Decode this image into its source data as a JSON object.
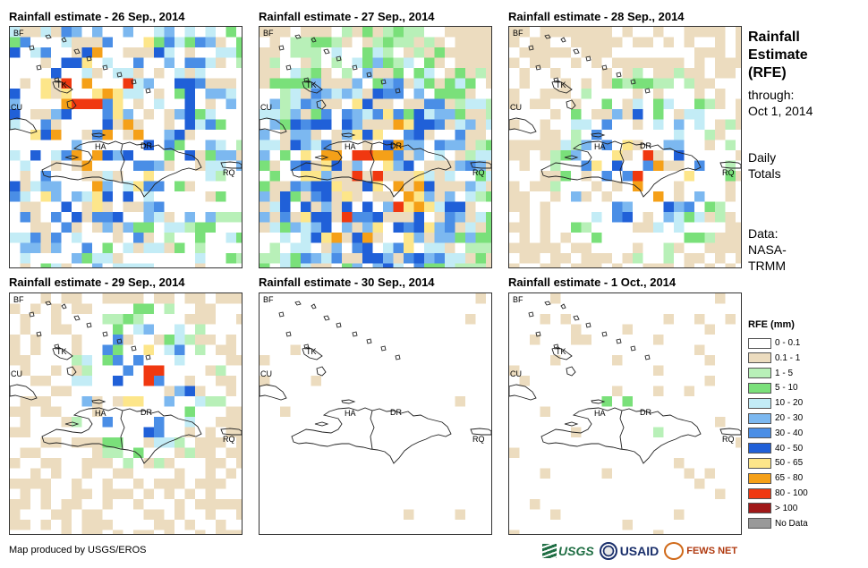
{
  "panels": [
    {
      "title": "Rainfall estimate - 26 Sep., 2014",
      "seed": 26,
      "density": 0.55,
      "intensity": 2.6,
      "focus": [
        0.3,
        0.35,
        0.75
      ]
    },
    {
      "title": "Rainfall estimate - 27 Sep., 2014",
      "seed": 27,
      "density": 0.85,
      "intensity": 2.9,
      "focus": [
        0.45,
        0.6,
        0.5
      ]
    },
    {
      "title": "Rainfall estimate - 28 Sep., 2014",
      "seed": 28,
      "density": 0.55,
      "intensity": 3.0,
      "focus": [
        0.55,
        0.55,
        0.3
      ]
    },
    {
      "title": "Rainfall estimate - 29 Sep., 2014",
      "seed": 29,
      "density": 0.5,
      "intensity": 3.1,
      "focus": [
        0.55,
        0.35,
        0.25
      ]
    },
    {
      "title": "Rainfall estimate - 30 Sep., 2014",
      "seed": 30,
      "density": 0.03,
      "intensity": 0.7,
      "focus": [
        0.4,
        0.5,
        0.2
      ]
    },
    {
      "title": "Rainfall estimate - 1 Oct., 2014",
      "seed": 31,
      "density": 0.08,
      "intensity": 1.2,
      "focus": [
        0.5,
        0.55,
        0.3
      ]
    }
  ],
  "places": {
    "bf": "BF",
    "tk": "TK",
    "cu": "CU",
    "ha": "HA",
    "dr": "DR",
    "rq": "RQ"
  },
  "side": {
    "title_line1": "Rainfall",
    "title_line2": "Estimate",
    "title_line3": "(RFE)",
    "through": "through:",
    "through_date": "Oct 1, 2014",
    "totals_line1": "Daily",
    "totals_line2": "Totals",
    "data_line1": "Data:",
    "data_line2": "NASA-",
    "data_line3": "TRMM"
  },
  "legend": {
    "title": "RFE (mm)",
    "items": [
      {
        "label": "0 - 0.1",
        "color": "#ffffff"
      },
      {
        "label": "0.1 - 1",
        "color": "#ecdcbf"
      },
      {
        "label": "1 - 5",
        "color": "#b8f0b8"
      },
      {
        "label": "5 - 10",
        "color": "#7ae07a"
      },
      {
        "label": "10 - 20",
        "color": "#c3ecf6"
      },
      {
        "label": "20 - 30",
        "color": "#7cb8f0"
      },
      {
        "label": "30 - 40",
        "color": "#4a8ee6"
      },
      {
        "label": "40 - 50",
        "color": "#2060d8"
      },
      {
        "label": "50 - 65",
        "color": "#fde68a"
      },
      {
        "label": "65 - 80",
        "color": "#f5a018"
      },
      {
        "label": "80 - 100",
        "color": "#f03810"
      },
      {
        "label": "> 100",
        "color": "#a01818"
      },
      {
        "label": "No Data",
        "color": "#999999"
      }
    ]
  },
  "credit": "Map produced by USGS/EROS",
  "logos": {
    "usgs": "USGS",
    "usaid": "USAID",
    "fews": "FEWS NET"
  }
}
